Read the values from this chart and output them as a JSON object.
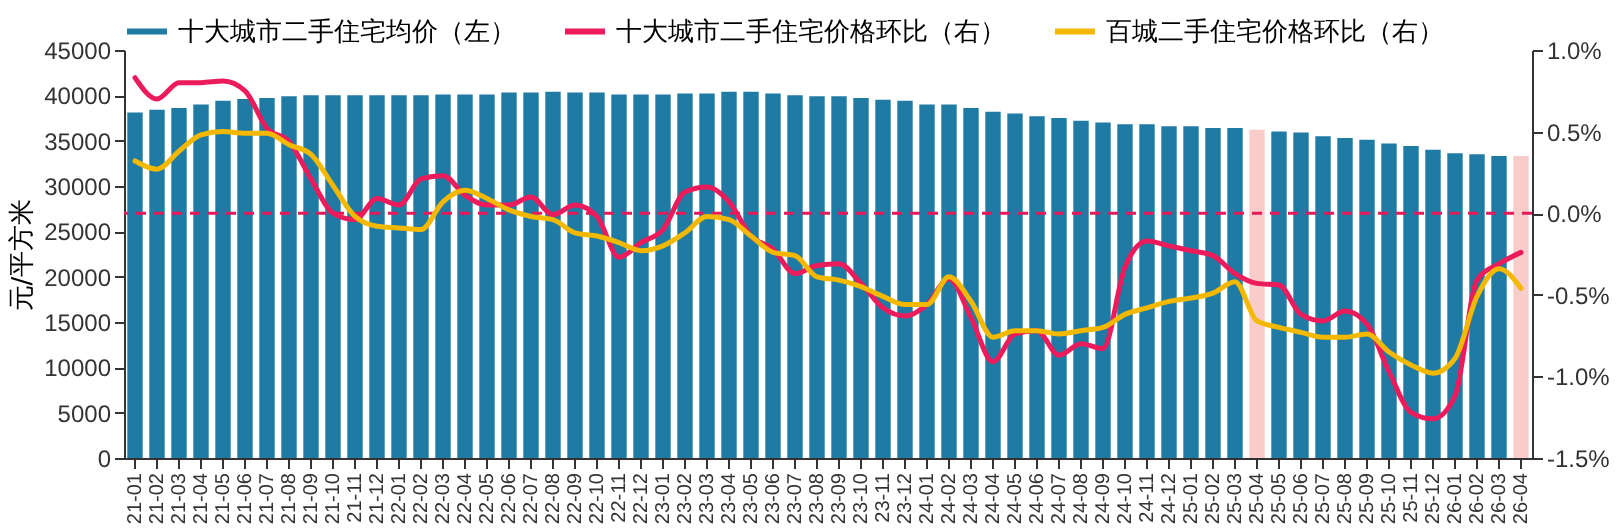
{
  "chart_data": {
    "type": "bar",
    "ylabel": "元/平方米",
    "legend": "top",
    "grid": false,
    "categories": [
      "21-01",
      "21-02",
      "21-03",
      "21-04",
      "21-05",
      "21-06",
      "21-07",
      "21-08",
      "21-09",
      "21-10",
      "21-11",
      "21-12",
      "22-01",
      "22-02",
      "22-03",
      "22-04",
      "22-05",
      "22-06",
      "22-07",
      "22-08",
      "22-09",
      "22-10",
      "22-11",
      "22-12",
      "23-01",
      "23-02",
      "23-03",
      "23-04",
      "23-05",
      "23-06",
      "23-07",
      "23-08",
      "23-09",
      "23-10",
      "23-11",
      "23-12",
      "24-01",
      "24-02",
      "24-03",
      "24-04",
      "24-05",
      "24-06",
      "24-07",
      "24-08",
      "24-09",
      "24-10",
      "24-11",
      "24-12",
      "25-01",
      "25-02",
      "25-03",
      "25-04",
      "25-05",
      "25-06",
      "25-07",
      "25-08",
      "25-09",
      "25-10",
      "25-11",
      "25-12",
      "26-01",
      "26-02",
      "26-03",
      "26-04"
    ],
    "ylim": [
      0,
      45000
    ],
    "yticks": [
      0,
      5000,
      10000,
      15000,
      20000,
      25000,
      30000,
      35000,
      40000,
      45000
    ],
    "y2lim": [
      -1.5,
      1.0
    ],
    "y2ticks": [
      {
        "value": -1.5,
        "label": "-1.5%"
      },
      {
        "value": -1.0,
        "label": "-1.0%"
      },
      {
        "value": -0.5,
        "label": "-0.5%"
      },
      {
        "value": 0,
        "label": "0.0%"
      },
      {
        "value": 0.5,
        "label": "0.5%"
      },
      {
        "value": 1.0,
        "label": "1.0%"
      }
    ],
    "ref_lines": [
      {
        "axis": "y2",
        "value": 0,
        "color": "#e8185a",
        "line_style": "dashed"
      }
    ],
    "series": [
      {
        "name": "十大城市二手住宅均价（左）",
        "color": "#1f7ba3",
        "colors": [
          "#1f7ba3",
          "#1f7ba3",
          "#1f7ba3",
          "#1f7ba3",
          "#1f7ba3",
          "#1f7ba3",
          "#1f7ba3",
          "#1f7ba3",
          "#1f7ba3",
          "#1f7ba3",
          "#1f7ba3",
          "#1f7ba3",
          "#1f7ba3",
          "#1f7ba3",
          "#1f7ba3",
          "#1f7ba3",
          "#1f7ba3",
          "#1f7ba3",
          "#1f7ba3",
          "#1f7ba3",
          "#1f7ba3",
          "#1f7ba3",
          "#1f7ba3",
          "#1f7ba3",
          "#1f7ba3",
          "#1f7ba3",
          "#1f7ba3",
          "#1f7ba3",
          "#1f7ba3",
          "#1f7ba3",
          "#1f7ba3",
          "#1f7ba3",
          "#1f7ba3",
          "#1f7ba3",
          "#1f7ba3",
          "#1f7ba3",
          "#1f7ba3",
          "#1f7ba3",
          "#1f7ba3",
          "#1f7ba3",
          "#1f7ba3",
          "#1f7ba3",
          "#1f7ba3",
          "#1f7ba3",
          "#1f7ba3",
          "#1f7ba3",
          "#1f7ba3",
          "#1f7ba3",
          "#1f7ba3",
          "#1f7ba3",
          "#1f7ba3",
          "#f9cccc",
          "#1f7ba3",
          "#1f7ba3",
          "#1f7ba3",
          "#1f7ba3",
          "#1f7ba3",
          "#1f7ba3",
          "#1f7ba3",
          "#1f7ba3",
          "#1f7ba3",
          "#1f7ba3",
          "#1f7ba3",
          "#f9cccc"
        ],
        "values": [
          38100,
          38400,
          38600,
          39000,
          39400,
          39600,
          39700,
          39900,
          40000,
          40000,
          40000,
          40000,
          40000,
          40000,
          40100,
          40100,
          40100,
          40300,
          40300,
          40400,
          40300,
          40300,
          40100,
          40100,
          40100,
          40200,
          40200,
          40400,
          40400,
          40200,
          40000,
          39900,
          39900,
          39700,
          39500,
          39400,
          39000,
          39000,
          38600,
          38200,
          38000,
          37700,
          37500,
          37200,
          37000,
          36800,
          36800,
          36600,
          36600,
          36400,
          36400,
          36200,
          36000,
          35900,
          35500,
          35300,
          35100,
          34700,
          34400,
          34000,
          33600,
          33500,
          33300,
          33300
        ]
      },
      {
        "name": "十大城市二手住宅价格环比（右）",
        "type": "line",
        "axis": "y2",
        "color": "#ec1b5b",
        "values": [
          0.83,
          0.7,
          0.8,
          0.8,
          0.81,
          0.75,
          0.52,
          0.44,
          0.21,
          0.0,
          -0.04,
          0.09,
          0.05,
          0.21,
          0.23,
          0.11,
          0.05,
          0.05,
          0.1,
          -0.01,
          0.05,
          -0.02,
          -0.27,
          -0.18,
          -0.1,
          0.13,
          0.16,
          0.07,
          -0.14,
          -0.22,
          -0.37,
          -0.32,
          -0.31,
          -0.43,
          -0.58,
          -0.63,
          -0.56,
          -0.4,
          -0.64,
          -0.91,
          -0.74,
          -0.72,
          -0.87,
          -0.8,
          -0.83,
          -0.33,
          -0.17,
          -0.2,
          -0.23,
          -0.26,
          -0.37,
          -0.43,
          -0.44,
          -0.62,
          -0.66,
          -0.6,
          -0.68,
          -0.97,
          -1.22,
          -1.26,
          -1.12,
          -0.41,
          -0.31,
          -0.24
        ]
      },
      {
        "name": "百城二手住宅价格环比（右）",
        "type": "line",
        "axis": "y2",
        "color": "#f5b800",
        "values": [
          0.32,
          0.27,
          0.38,
          0.48,
          0.5,
          0.49,
          0.49,
          0.42,
          0.36,
          0.17,
          -0.02,
          -0.08,
          -0.09,
          -0.1,
          0.07,
          0.14,
          0.09,
          0.02,
          -0.02,
          -0.04,
          -0.12,
          -0.14,
          -0.18,
          -0.23,
          -0.2,
          -0.12,
          -0.02,
          -0.04,
          -0.14,
          -0.24,
          -0.26,
          -0.39,
          -0.41,
          -0.45,
          -0.51,
          -0.56,
          -0.56,
          -0.39,
          -0.54,
          -0.76,
          -0.72,
          -0.72,
          -0.74,
          -0.72,
          -0.7,
          -0.62,
          -0.58,
          -0.54,
          -0.52,
          -0.49,
          -0.42,
          -0.66,
          -0.7,
          -0.73,
          -0.76,
          -0.76,
          -0.74,
          -0.85,
          -0.93,
          -0.98,
          -0.89,
          -0.51,
          -0.34,
          -0.46
        ]
      }
    ]
  }
}
